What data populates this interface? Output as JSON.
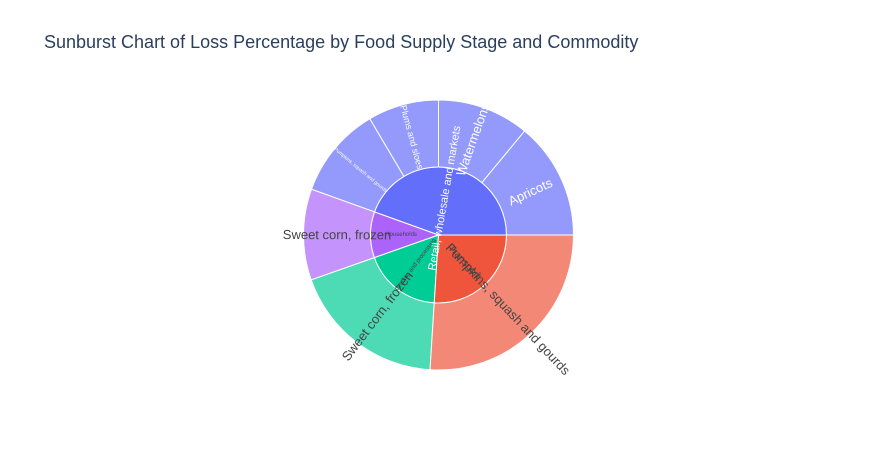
{
  "title": "Sunburst Chart of Loss Percentage by Food Supply Stage and Commodity",
  "chart_data": {
    "type": "sunburst",
    "title": "Sunburst Chart of Loss Percentage by Food Supply Stage and Commodity",
    "inner": [
      {
        "name": "Retail, wholesale and markets",
        "label": "Retail, wholesale and markets",
        "value": 44.5,
        "color": "#636efa",
        "text_color": "#ffffff"
      },
      {
        "name": "Households",
        "label": "Households",
        "value": 10.9,
        "color": "#ab63fa",
        "text_color": "#444444"
      },
      {
        "name": "Grading and processing",
        "label": "Grading and processing",
        "value": 18.6,
        "color": "#00cc96",
        "text_color": "#444444"
      },
      {
        "name": "Transport",
        "label": "Transport",
        "value": 26.0,
        "color": "#ef553b",
        "text_color": "#444444"
      }
    ],
    "outer": [
      {
        "parent": "Retail, wholesale and markets",
        "name": "Apricots",
        "label": "Apricots",
        "value": 14.0,
        "color": "#939afc",
        "text_color": "#ffffff"
      },
      {
        "parent": "Retail, wholesale and markets",
        "name": "Watermelons",
        "label": "Watermelons",
        "value": 11.0,
        "color": "#939afc",
        "text_color": "#ffffff"
      },
      {
        "parent": "Retail, wholesale and markets",
        "name": "Plums and sloes",
        "label": "Plums and sloes",
        "value": 8.5,
        "color": "#939afc",
        "text_color": "#ffffff"
      },
      {
        "parent": "Retail, wholesale and markets",
        "name": "Pumpkins, squash and gourds",
        "label": "Pumpkins, squash and gourds",
        "value": 11.0,
        "color": "#939afc",
        "text_color": "#ffffff"
      },
      {
        "parent": "Households",
        "name": "Sweet corn, frozen",
        "label": "Sweet corn, frozen",
        "value": 10.9,
        "color": "#c493fc",
        "text_color": "#444444"
      },
      {
        "parent": "Grading and processing",
        "name": "Sweet corn, frozen",
        "label": "Sweet corn, frozen",
        "value": 18.6,
        "color": "#4ddbb5",
        "text_color": "#444444"
      },
      {
        "parent": "Transport",
        "name": "Pumpkins, squash and gourds",
        "label": "Pumpkins, squash and gourds",
        "value": 26.0,
        "color": "#f48876",
        "text_color": "#444444"
      }
    ]
  }
}
